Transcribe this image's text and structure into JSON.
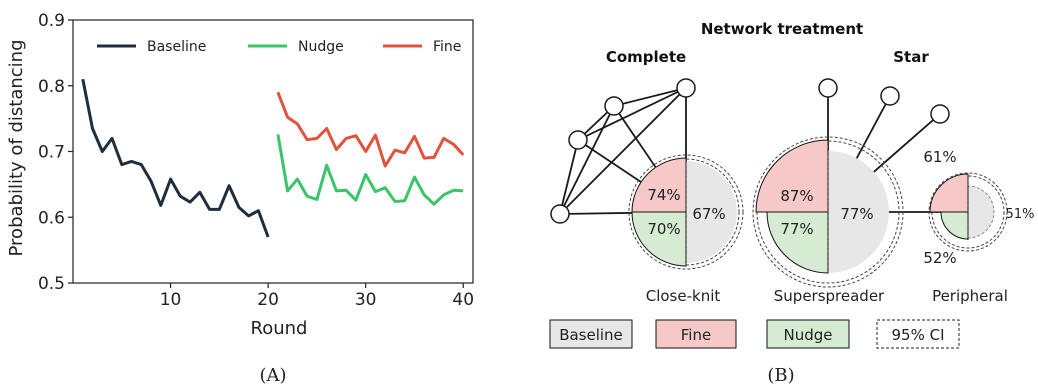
{
  "chart_data": [
    {
      "type": "line",
      "panel_label": "(A)",
      "xlabel": "Round",
      "ylabel": "Probability of distancing",
      "xlim": [
        0,
        41
      ],
      "ylim": [
        0.5,
        0.9
      ],
      "xticks": [
        10,
        20,
        30,
        40
      ],
      "yticks": [
        0.5,
        0.6,
        0.7,
        0.8,
        0.9
      ],
      "grid": false,
      "legend_position": "top",
      "series": [
        {
          "name": "Baseline",
          "color": "#1f2d3d",
          "x": [
            1,
            2,
            3,
            4,
            5,
            6,
            7,
            8,
            9,
            10,
            11,
            12,
            13,
            14,
            15,
            16,
            17,
            18,
            19,
            20
          ],
          "y": [
            0.81,
            0.735,
            0.7,
            0.72,
            0.68,
            0.685,
            0.68,
            0.655,
            0.618,
            0.658,
            0.632,
            0.623,
            0.638,
            0.612,
            0.612,
            0.648,
            0.615,
            0.602,
            0.61,
            0.57
          ]
        },
        {
          "name": "Nudge",
          "color": "#3cc46a",
          "x": [
            21,
            22,
            23,
            24,
            25,
            26,
            27,
            28,
            29,
            30,
            31,
            32,
            33,
            34,
            35,
            36,
            37,
            38,
            39,
            40
          ],
          "y": [
            0.726,
            0.64,
            0.658,
            0.632,
            0.627,
            0.679,
            0.64,
            0.641,
            0.626,
            0.665,
            0.639,
            0.645,
            0.624,
            0.625,
            0.661,
            0.634,
            0.62,
            0.634,
            0.641,
            0.64
          ]
        },
        {
          "name": "Fine",
          "color": "#e0533d",
          "x": [
            21,
            22,
            23,
            24,
            25,
            26,
            27,
            28,
            29,
            30,
            31,
            32,
            33,
            34,
            35,
            36,
            37,
            38,
            39,
            40
          ],
          "y": [
            0.79,
            0.752,
            0.742,
            0.718,
            0.72,
            0.735,
            0.703,
            0.72,
            0.724,
            0.7,
            0.725,
            0.678,
            0.702,
            0.698,
            0.723,
            0.69,
            0.691,
            0.72,
            0.711,
            0.695
          ]
        }
      ]
    },
    {
      "type": "diagram",
      "panel_label": "(B)",
      "title": "Network treatment",
      "network_labels": [
        "Complete",
        "Star"
      ],
      "nodes": [
        {
          "label": "Close-knit",
          "baseline": "67%",
          "fine": "74%",
          "nudge": "70%"
        },
        {
          "label": "Superspreader",
          "baseline": "77%",
          "fine": "87%",
          "nudge": "77%"
        },
        {
          "label": "Peripheral",
          "baseline": "51%",
          "fine": "61%",
          "nudge": "52%"
        }
      ],
      "legend": [
        "Baseline",
        "Fine",
        "Nudge",
        "95% CI"
      ],
      "colors": {
        "baseline": "#e7e7e7",
        "fine": "#f6c8c8",
        "nudge": "#d5ecd3",
        "edge": "#1a1a1a"
      }
    }
  ]
}
